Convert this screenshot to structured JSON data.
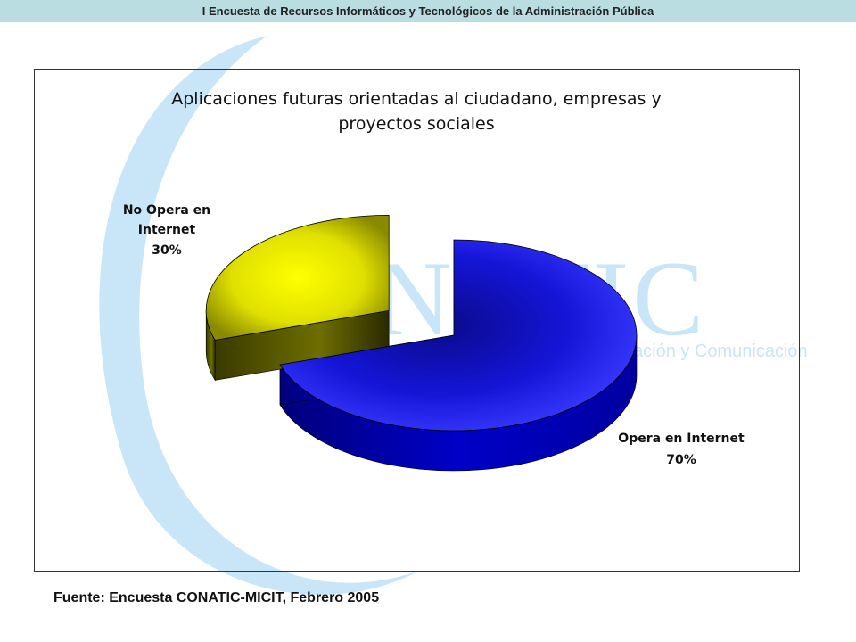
{
  "header": {
    "title": "I Encuesta de Recursos Informáticos y Tecnológicos de la Administración Pública"
  },
  "watermark": {
    "brand": "CONATIC",
    "tagline": "ación y Comunicación"
  },
  "source": {
    "text": "Fuente: Encuesta CONATIC-MICIT, Febrero 2005"
  },
  "colors": {
    "opera": "#1010e8",
    "no_opera": "#e6e600",
    "header_bg": "#b9dde1",
    "watermark": "#c8e6f7"
  },
  "chart_data": {
    "type": "pie",
    "title_lines": [
      "Aplicaciones futuras orientadas al ciudadano, empresas y",
      "proyectos sociales"
    ],
    "categories": [
      "Opera en Internet",
      "No Opera en Internet"
    ],
    "values": [
      70,
      30
    ],
    "labels": [
      {
        "lines": [
          "Opera en Internet"
        ],
        "pct": "70%"
      },
      {
        "lines": [
          "No Opera en",
          "Internet"
        ],
        "pct": "30%"
      }
    ],
    "exploded": true,
    "three_d": true
  }
}
